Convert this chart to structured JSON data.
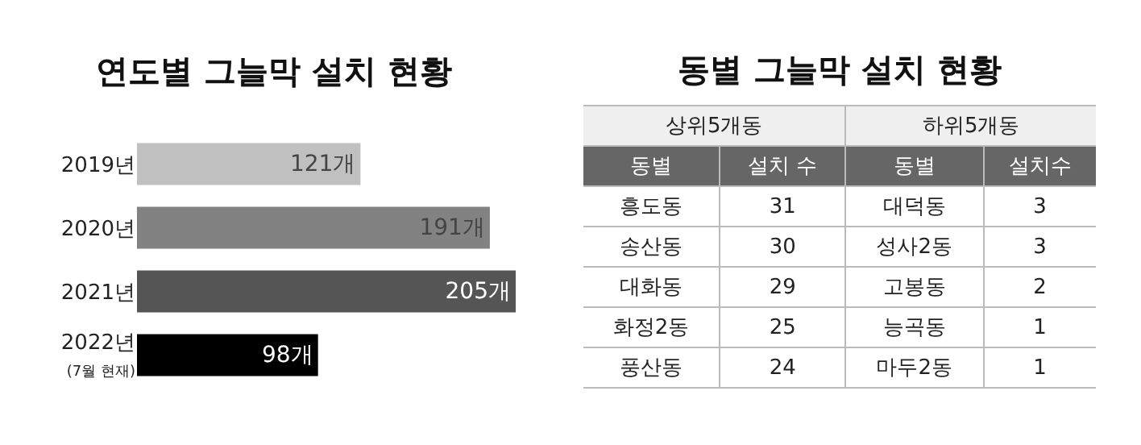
{
  "chart_data": [
    {
      "type": "bar",
      "title": "연도별 그늘막 설치 현황",
      "orientation": "horizontal",
      "categories": [
        "2019년",
        "2020년",
        "2021년",
        "2022년\n(7월 현재)"
      ],
      "values": [
        121,
        191,
        205,
        98
      ],
      "colors": [
        "#c0c0c0",
        "#828282",
        "#555555",
        "#000000"
      ],
      "value_labels": [
        "121개",
        "191개",
        "205개",
        "98개"
      ],
      "xlim": [
        0,
        205
      ],
      "tick_labels": "y",
      "grid": false,
      "legend": false
    },
    {
      "type": "other",
      "title": "동별 그늘막 설치 현황",
      "annotations": [
        "상위5개동",
        "하위5개동"
      ],
      "categories": [
        "동별",
        "설치 수",
        "동별",
        "설치수"
      ],
      "cell_labels": [
        [
          "흥도동",
          "31",
          "대덕동",
          "3"
        ],
        [
          "송산동",
          "30",
          "성사2동",
          "3"
        ],
        [
          "대화동",
          "29",
          "고봉동",
          "2"
        ],
        [
          "화정2동",
          "25",
          "능곡동",
          "1"
        ],
        [
          "풍산동",
          "24",
          "마두2동",
          "1"
        ]
      ]
    }
  ]
}
